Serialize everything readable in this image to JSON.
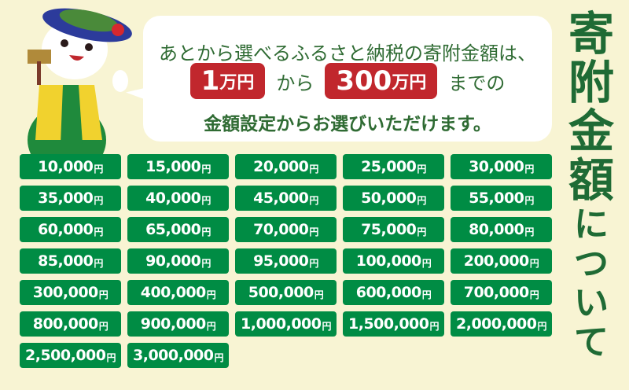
{
  "bubble": {
    "line1": "あとから選べるふるさと納税の寄附金額は、",
    "min_amount": "1",
    "min_unit": "万円",
    "from": "から",
    "max_amount": "300",
    "max_unit": "万円",
    "until": "までの",
    "line3": "金額設定からお選びいただけます。"
  },
  "title": {
    "c1": "寄",
    "c2": "附",
    "c3": "金",
    "c4": "額",
    "c5": "に",
    "c6": "つ",
    "c7": "い",
    "c8": "て"
  },
  "yen": "円",
  "amounts": [
    "10,000",
    "15,000",
    "20,000",
    "25,000",
    "30,000",
    "35,000",
    "40,000",
    "45,000",
    "50,000",
    "55,000",
    "60,000",
    "65,000",
    "70,000",
    "75,000",
    "80,000",
    "85,000",
    "90,000",
    "95,000",
    "100,000",
    "200,000",
    "300,000",
    "400,000",
    "500,000",
    "600,000",
    "700,000",
    "800,000",
    "900,000",
    "1,000,000",
    "1,500,000",
    "2,000,000",
    "2,500,000",
    "3,000,000"
  ],
  "colors": {
    "background": "#f8f4d3",
    "button": "#008c44",
    "accent": "#c1272d",
    "text": "#2f6b33"
  }
}
